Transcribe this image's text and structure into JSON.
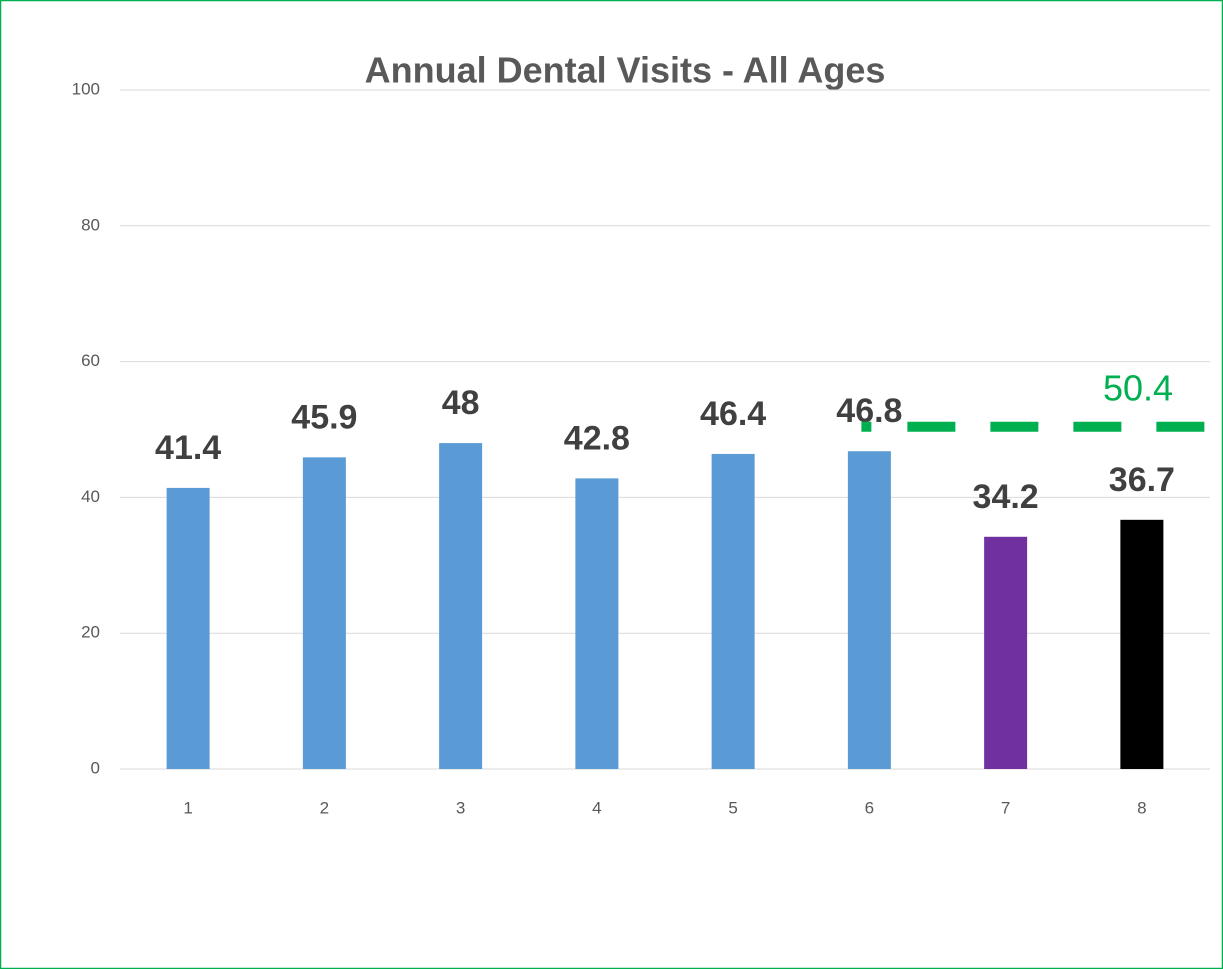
{
  "chart_data": {
    "type": "bar",
    "title": "Annual Dental Visits - All Ages",
    "categories": [
      "1",
      "2",
      "3",
      "4",
      "5",
      "6",
      "7",
      "8"
    ],
    "values": [
      41.4,
      45.9,
      48,
      42.8,
      46.4,
      46.8,
      34.2,
      36.7
    ],
    "colors": [
      "#5b9bd5",
      "#5b9bd5",
      "#5b9bd5",
      "#5b9bd5",
      "#5b9bd5",
      "#5b9bd5",
      "#7030a0",
      "#000000"
    ],
    "ylim": [
      0,
      100
    ],
    "yticks": [
      0,
      20,
      40,
      60,
      80,
      100
    ],
    "grid": true,
    "reference_line": {
      "value": 50.4,
      "color": "#00b050"
    }
  }
}
